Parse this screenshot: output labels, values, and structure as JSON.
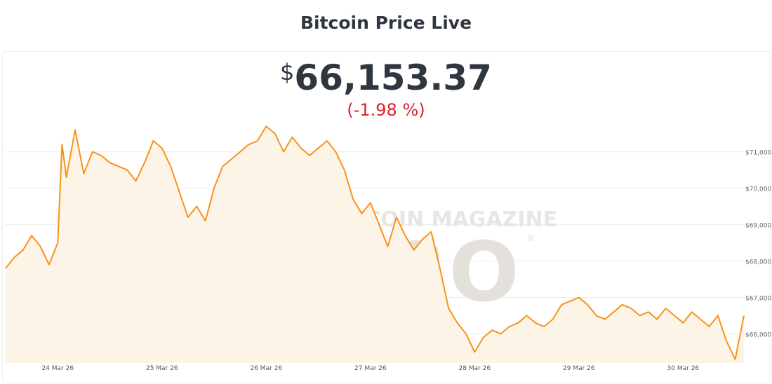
{
  "header": {
    "title": "Bitcoin Price Live"
  },
  "price": {
    "currency": "$",
    "value": "66,153.37",
    "change": "(-1.98 %)"
  },
  "watermark": {
    "line1": "BITCOIN MAGAZINE",
    "line2": "PRO",
    "reg": "®"
  },
  "colors": {
    "line": "#f7931a",
    "fill": "#fdf4e8",
    "change": "#e0202f",
    "grid": "#ececec"
  },
  "chart_data": {
    "type": "area",
    "title": "Bitcoin Price Live",
    "xlabel": "",
    "ylabel": "",
    "x_ticks": [
      "24 Mar 26",
      "25 Mar 26",
      "26 Mar 26",
      "27 Mar 26",
      "28 Mar 26",
      "29 Mar 26",
      "30 Mar 26"
    ],
    "y_ticks": [
      "$71,000",
      "$70,000",
      "$69,000",
      "$68,000",
      "$67,000",
      "$66,000"
    ],
    "y_tick_values": [
      71000,
      70000,
      69000,
      68000,
      67000,
      66000
    ],
    "ylim": [
      65200,
      71800
    ],
    "grid": true,
    "series": [
      {
        "x": [
          "2026-03-23 12:00",
          "2026-03-23 14:00",
          "2026-03-23 16:00",
          "2026-03-23 18:00",
          "2026-03-23 20:00",
          "2026-03-23 22:00",
          "2026-03-24 00:00",
          "2026-03-24 01:00",
          "2026-03-24 02:00",
          "2026-03-24 04:00",
          "2026-03-24 06:00",
          "2026-03-24 08:00",
          "2026-03-24 10:00",
          "2026-03-24 12:00",
          "2026-03-24 14:00",
          "2026-03-24 16:00",
          "2026-03-24 18:00",
          "2026-03-24 20:00",
          "2026-03-24 22:00",
          "2026-03-25 00:00",
          "2026-03-25 02:00",
          "2026-03-25 04:00",
          "2026-03-25 06:00",
          "2026-03-25 08:00",
          "2026-03-25 10:00",
          "2026-03-25 12:00",
          "2026-03-25 14:00",
          "2026-03-25 16:00",
          "2026-03-25 18:00",
          "2026-03-25 20:00",
          "2026-03-25 22:00",
          "2026-03-26 00:00",
          "2026-03-26 02:00",
          "2026-03-26 04:00",
          "2026-03-26 06:00",
          "2026-03-26 08:00",
          "2026-03-26 10:00",
          "2026-03-26 12:00",
          "2026-03-26 14:00",
          "2026-03-26 16:00",
          "2026-03-26 18:00",
          "2026-03-26 20:00",
          "2026-03-26 22:00",
          "2026-03-27 00:00",
          "2026-03-27 02:00",
          "2026-03-27 04:00",
          "2026-03-27 06:00",
          "2026-03-27 08:00",
          "2026-03-27 10:00",
          "2026-03-27 12:00",
          "2026-03-27 14:00",
          "2026-03-27 16:00",
          "2026-03-27 18:00",
          "2026-03-27 20:00",
          "2026-03-27 22:00",
          "2026-03-28 00:00",
          "2026-03-28 02:00",
          "2026-03-28 04:00",
          "2026-03-28 06:00",
          "2026-03-28 08:00",
          "2026-03-28 10:00",
          "2026-03-28 12:00",
          "2026-03-28 14:00",
          "2026-03-28 16:00",
          "2026-03-28 18:00",
          "2026-03-28 20:00",
          "2026-03-28 22:00",
          "2026-03-29 00:00",
          "2026-03-29 02:00",
          "2026-03-29 04:00",
          "2026-03-29 06:00",
          "2026-03-29 08:00",
          "2026-03-29 10:00",
          "2026-03-29 12:00",
          "2026-03-29 14:00",
          "2026-03-29 16:00",
          "2026-03-29 18:00",
          "2026-03-29 20:00",
          "2026-03-29 22:00",
          "2026-03-30 00:00",
          "2026-03-30 02:00",
          "2026-03-30 04:00",
          "2026-03-30 06:00",
          "2026-03-30 08:00",
          "2026-03-30 10:00",
          "2026-03-30 12:00",
          "2026-03-30 14:00"
        ],
        "y": [
          67800,
          68100,
          68300,
          68700,
          68400,
          67900,
          68500,
          71200,
          70300,
          71600,
          70400,
          71000,
          70900,
          70700,
          70600,
          70500,
          70200,
          70700,
          71300,
          71100,
          70600,
          69900,
          69200,
          69500,
          69100,
          70000,
          70600,
          70800,
          71000,
          71200,
          71300,
          71700,
          71500,
          71000,
          71400,
          71100,
          70900,
          71100,
          71300,
          71000,
          70500,
          69700,
          69300,
          69600,
          69000,
          68400,
          69200,
          68700,
          68300,
          68600,
          68800,
          67800,
          66700,
          66300,
          66000,
          65500,
          65900,
          66100,
          66000,
          66200,
          66300,
          66500,
          66300,
          66200,
          66400,
          66800,
          66900,
          67000,
          66800,
          66500,
          66400,
          66600,
          66800,
          66700,
          66500,
          66600,
          66400,
          66700,
          66500,
          66300,
          66600,
          66400,
          66200,
          66500,
          65800,
          65300,
          66500
        ]
      }
    ]
  }
}
